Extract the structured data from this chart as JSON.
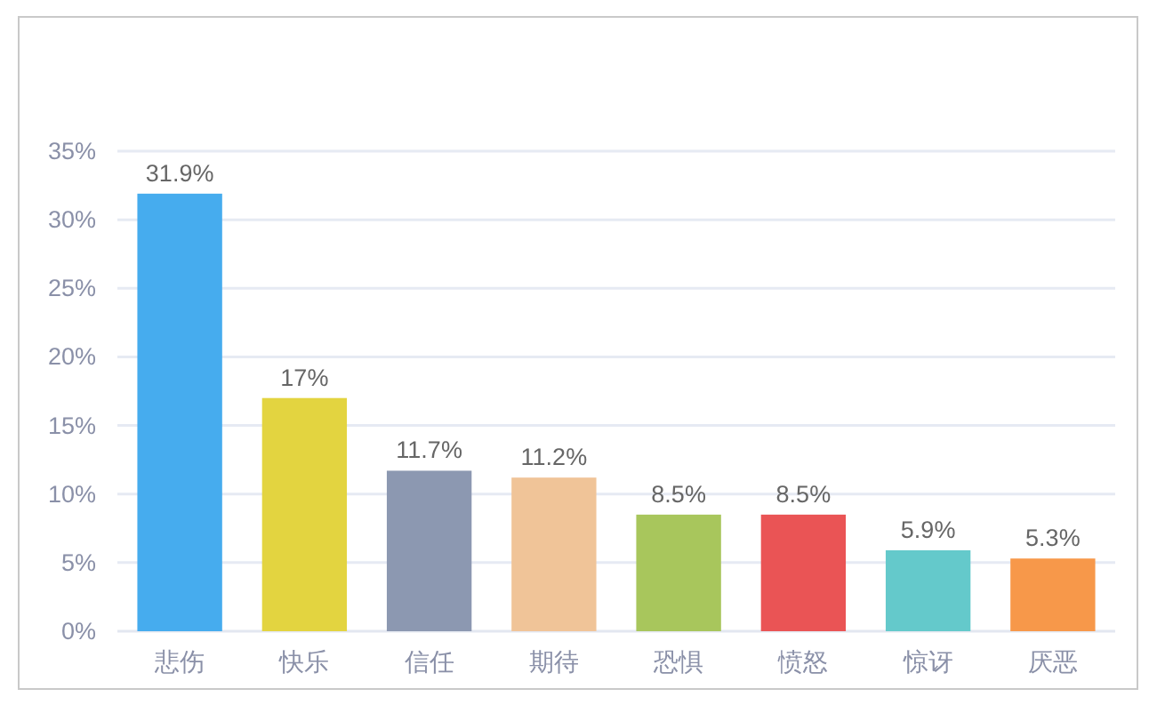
{
  "chart_data": {
    "type": "bar",
    "categories": [
      "悲伤",
      "快乐",
      "信任",
      "期待",
      "恐惧",
      "愤怒",
      "惊讶",
      "厌恶"
    ],
    "values": [
      31.9,
      17,
      11.7,
      11.2,
      8.5,
      8.5,
      5.9,
      5.3
    ],
    "colors": [
      "#46acee",
      "#e3d440",
      "#8c98b1",
      "#f0c498",
      "#a8c65c",
      "#ea5455",
      "#64c9cb",
      "#f7984a"
    ],
    "value_labels": [
      "31.9%",
      "17%",
      "11.7%",
      "11.2%",
      "8.5%",
      "8.5%",
      "5.9%",
      "5.3%"
    ],
    "ylim": [
      0,
      35
    ],
    "yticks": [
      {
        "value": 0,
        "label": "0%"
      },
      {
        "value": 5,
        "label": "5%"
      },
      {
        "value": 10,
        "label": "10%"
      },
      {
        "value": 15,
        "label": "15%"
      },
      {
        "value": 20,
        "label": "20%"
      },
      {
        "value": 25,
        "label": "25%"
      },
      {
        "value": 30,
        "label": "30%"
      },
      {
        "value": 35,
        "label": "35%"
      }
    ],
    "grid": "y"
  }
}
